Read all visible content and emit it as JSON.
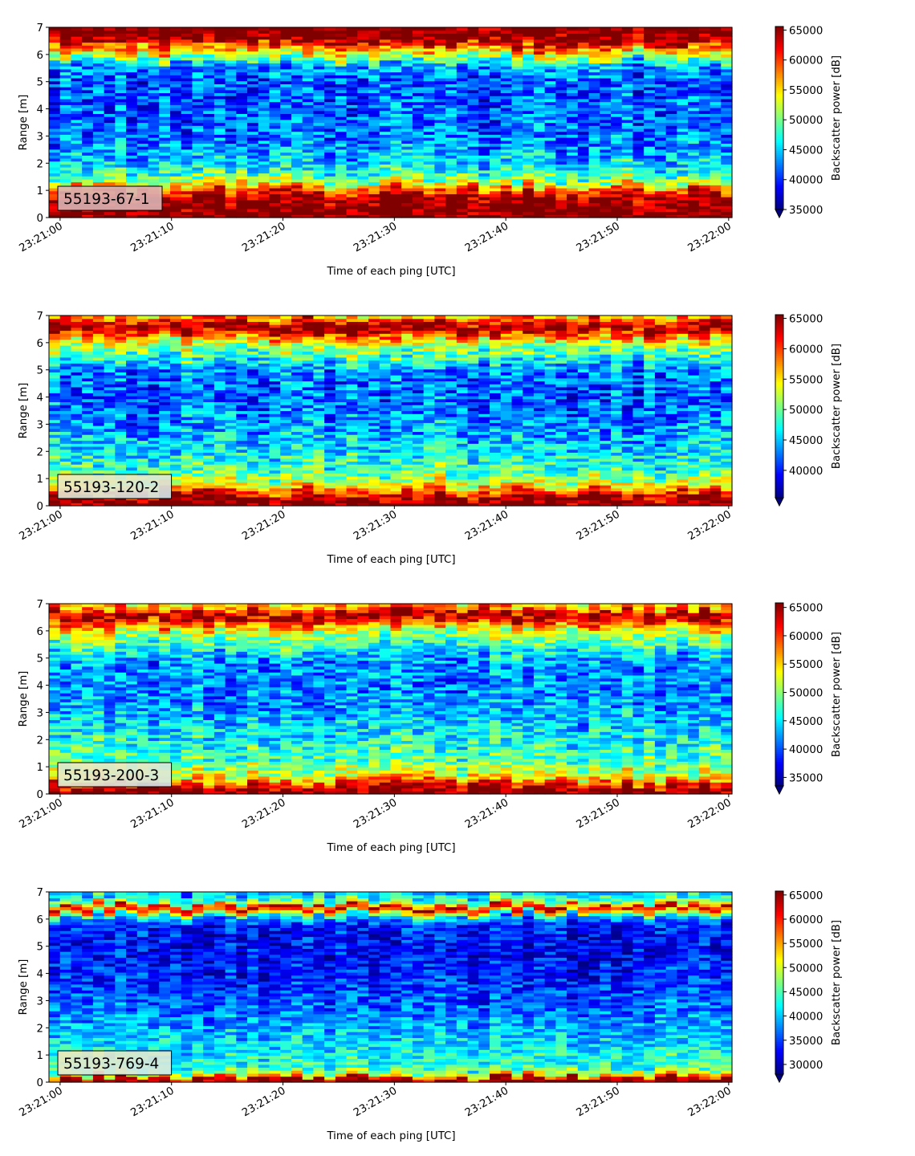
{
  "chart_data": [
    {
      "type": "heatmap",
      "annotation": "55193-67-1",
      "xlabel": "Time of each ping [UTC]",
      "ylabel": "Range [m]",
      "x_ticks": [
        "23:21:00",
        "23:21:10",
        "23:21:20",
        "23:21:30",
        "23:21:40",
        "23:21:50",
        "23:22:00"
      ],
      "y_ticks": [
        0,
        1,
        2,
        3,
        4,
        5,
        6,
        7
      ],
      "xlim_seconds_after_23_21_00": [
        -1,
        60.3
      ],
      "ylim": [
        0,
        7
      ],
      "colorbar": {
        "label": "Backscatter power [dB]",
        "ticks": [
          35000,
          40000,
          45000,
          50000,
          55000,
          60000,
          65000
        ],
        "range": [
          35000,
          65600
        ],
        "extend": "min",
        "colormap": "jet"
      },
      "profile": [
        [
          0.0,
          66000
        ],
        [
          0.25,
          66000
        ],
        [
          0.8,
          64000
        ],
        [
          1.1,
          58000
        ],
        [
          1.4,
          50000
        ],
        [
          1.8,
          46500
        ],
        [
          2.2,
          44500
        ],
        [
          3.0,
          42000
        ],
        [
          4.0,
          41500
        ],
        [
          5.0,
          41000
        ],
        [
          5.6,
          43500
        ],
        [
          6.0,
          53000
        ],
        [
          6.3,
          58500
        ],
        [
          6.5,
          64500
        ],
        [
          7.0,
          66000
        ]
      ]
    },
    {
      "type": "heatmap",
      "annotation": "55193-120-2",
      "xlabel": "Time of each ping [UTC]",
      "ylabel": "Range [m]",
      "x_ticks": [
        "23:21:00",
        "23:21:10",
        "23:21:20",
        "23:21:30",
        "23:21:40",
        "23:21:50",
        "23:22:00"
      ],
      "y_ticks": [
        0,
        1,
        2,
        3,
        4,
        5,
        6,
        7
      ],
      "xlim_seconds_after_23_21_00": [
        -1,
        60.3
      ],
      "ylim": [
        0,
        7
      ],
      "colorbar": {
        "label": "Backscatter power [dB]",
        "ticks": [
          40000,
          45000,
          50000,
          55000,
          60000,
          65000
        ],
        "range": [
          35500,
          65600
        ],
        "extend": "min",
        "colormap": "jet"
      },
      "profile": [
        [
          0.0,
          66000
        ],
        [
          0.2,
          66000
        ],
        [
          0.5,
          61000
        ],
        [
          0.8,
          54000
        ],
        [
          1.2,
          49500
        ],
        [
          2.0,
          46500
        ],
        [
          3.0,
          43500
        ],
        [
          4.0,
          42000
        ],
        [
          5.0,
          43000
        ],
        [
          5.5,
          48500
        ],
        [
          6.0,
          52500
        ],
        [
          6.3,
          60000
        ],
        [
          6.6,
          65000
        ],
        [
          6.85,
          61000
        ],
        [
          7.0,
          56000
        ]
      ]
    },
    {
      "type": "heatmap",
      "annotation": "55193-200-3",
      "xlabel": "Time of each ping [UTC]",
      "ylabel": "Range [m]",
      "x_ticks": [
        "23:21:00",
        "23:21:10",
        "23:21:20",
        "23:21:30",
        "23:21:40",
        "23:21:50",
        "23:22:00"
      ],
      "y_ticks": [
        0,
        1,
        2,
        3,
        4,
        5,
        6,
        7
      ],
      "xlim_seconds_after_23_21_00": [
        -1,
        60.3
      ],
      "ylim": [
        0,
        7
      ],
      "colorbar": {
        "label": "Backscatter power [dB]",
        "ticks": [
          35000,
          40000,
          45000,
          50000,
          55000,
          60000,
          65000
        ],
        "range": [
          33500,
          65800
        ],
        "extend": "min",
        "colormap": "jet"
      },
      "profile": [
        [
          0.0,
          66000
        ],
        [
          0.2,
          66000
        ],
        [
          0.4,
          60000
        ],
        [
          0.7,
          53000
        ],
        [
          1.2,
          48500
        ],
        [
          2.0,
          46000
        ],
        [
          3.0,
          43000
        ],
        [
          4.0,
          41500
        ],
        [
          5.0,
          42500
        ],
        [
          5.5,
          47500
        ],
        [
          6.0,
          52000
        ],
        [
          6.3,
          60000
        ],
        [
          6.6,
          65000
        ],
        [
          6.85,
          58000
        ],
        [
          7.0,
          54000
        ]
      ]
    },
    {
      "type": "heatmap",
      "annotation": "55193-769-4",
      "xlabel": "Time of each ping [UTC]",
      "ylabel": "Range [m]",
      "x_ticks": [
        "23:21:00",
        "23:21:10",
        "23:21:20",
        "23:21:30",
        "23:21:40",
        "23:21:50",
        "23:22:00"
      ],
      "y_ticks": [
        0,
        1,
        2,
        3,
        4,
        5,
        6,
        7
      ],
      "xlim_seconds_after_23_21_00": [
        -1,
        60.3
      ],
      "ylim": [
        0,
        7
      ],
      "colorbar": {
        "label": "Backscatter power [dB]",
        "ticks": [
          30000,
          35000,
          40000,
          45000,
          50000,
          55000,
          60000,
          65000
        ],
        "range": [
          28000,
          65800
        ],
        "extend": "min",
        "colormap": "jet"
      },
      "profile": [
        [
          0.0,
          66000
        ],
        [
          0.12,
          66000
        ],
        [
          0.25,
          52000
        ],
        [
          0.5,
          44000
        ],
        [
          1.0,
          42500
        ],
        [
          2.0,
          39000
        ],
        [
          3.0,
          35500
        ],
        [
          4.0,
          33500
        ],
        [
          5.0,
          32500
        ],
        [
          5.8,
          33500
        ],
        [
          6.1,
          40000
        ],
        [
          6.3,
          55000
        ],
        [
          6.45,
          64000
        ],
        [
          6.6,
          47000
        ],
        [
          7.0,
          39000
        ]
      ]
    }
  ],
  "colors": {
    "annotation_box_face": "#dbb4b4",
    "text": "#000000",
    "background": "#ffffff"
  }
}
